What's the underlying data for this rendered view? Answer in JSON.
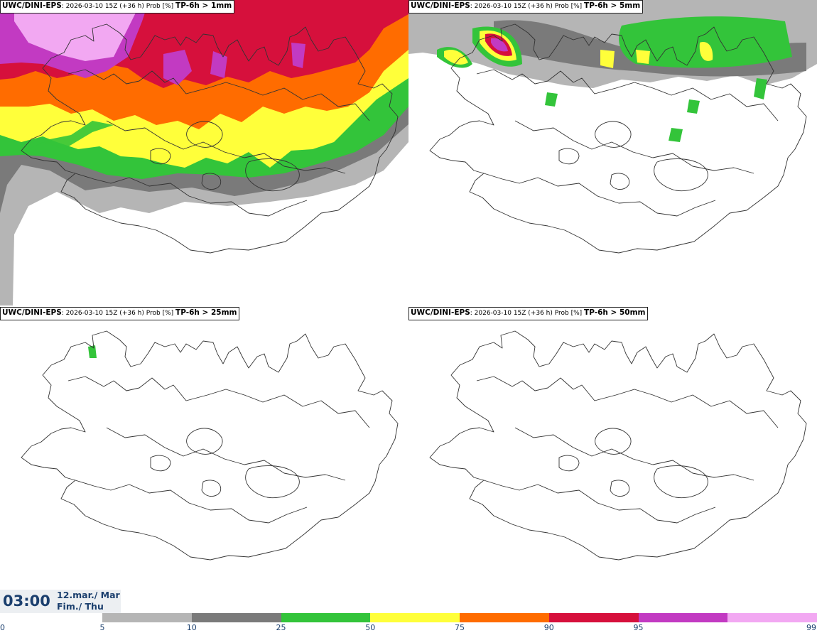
{
  "panels": [
    {
      "source": "UWC/DINI-EPS",
      "run": ": 2026-03-10 15Z (+36 h) Prob [%] ",
      "threshold": "TP-6h > 1mm"
    },
    {
      "source": "UWC/DINI-EPS",
      "run": ": 2026-03-10 15Z (+36 h) Prob [%] ",
      "threshold": "TP-6h > 5mm"
    },
    {
      "source": "UWC/DINI-EPS",
      "run": ": 2026-03-10 15Z (+36 h) Prob [%] ",
      "threshold": "TP-6h > 25mm"
    },
    {
      "source": "UWC/DINI-EPS",
      "run": ": 2026-03-10 15Z (+36 h) Prob [%] ",
      "threshold": "TP-6h > 50mm"
    }
  ],
  "valid_time": {
    "time": "03:00",
    "date": "12.mar./ Mar",
    "day": "Fim./ Thu"
  },
  "colorbar": {
    "ticks": [
      "0",
      "5",
      "10",
      "25",
      "50",
      "75",
      "90",
      "95",
      "99"
    ],
    "colors": [
      "#b5b5b5",
      "#7a7a7a",
      "#33c43a",
      "#ffff3a",
      "#ff6c00",
      "#d6103c",
      "#c23ac2",
      "#f2a8f2"
    ]
  }
}
